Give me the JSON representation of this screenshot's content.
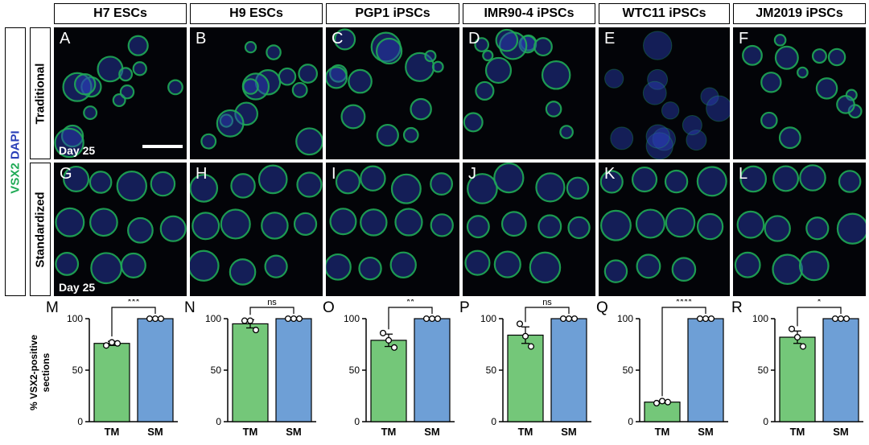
{
  "columns": [
    "H7 ESCs",
    "H9 ESCs",
    "PGP1 iPSCs",
    "IMR90-4 iPSCs",
    "WTC11 iPSCs",
    "JM2019 iPSCs"
  ],
  "rows": [
    "Traditional",
    "Standardized"
  ],
  "stain_label": {
    "marker": "VSX2",
    "nuclear": "DAPI"
  },
  "colors": {
    "marker": "#1faa55",
    "nuclear": "#2a3fb8",
    "tm_bar": "#74c779",
    "sm_bar": "#6e9fd6"
  },
  "panels_top": [
    "A",
    "B",
    "C",
    "D",
    "E",
    "F"
  ],
  "panels_bottom": [
    "G",
    "H",
    "I",
    "J",
    "K",
    "L"
  ],
  "day_label": "Day 25",
  "y_axis_label_line1": "% VSX2-positive",
  "y_axis_label_line2": "sections",
  "chart_data": [
    {
      "type": "bar",
      "panel": "M",
      "categories": [
        "TM",
        "SM"
      ],
      "values": [
        76,
        100
      ],
      "errors": [
        2,
        0
      ],
      "points": [
        [
          74,
          77,
          76
        ],
        [
          100,
          100,
          100
        ]
      ],
      "significance": "***",
      "ylim": [
        0,
        100
      ],
      "yticks": [
        0,
        50,
        100
      ]
    },
    {
      "type": "bar",
      "panel": "N",
      "categories": [
        "TM",
        "SM"
      ],
      "values": [
        95,
        100
      ],
      "errors": [
        4,
        0
      ],
      "points": [
        [
          98,
          98,
          89
        ],
        [
          100,
          100,
          100
        ]
      ],
      "significance": "ns",
      "ylim": [
        0,
        100
      ],
      "yticks": [
        0,
        50,
        100
      ]
    },
    {
      "type": "bar",
      "panel": "O",
      "categories": [
        "TM",
        "SM"
      ],
      "values": [
        79,
        100
      ],
      "errors": [
        6,
        0
      ],
      "points": [
        [
          86,
          79,
          72
        ],
        [
          100,
          100,
          100
        ]
      ],
      "significance": "**",
      "ylim": [
        0,
        100
      ],
      "yticks": [
        0,
        50,
        100
      ]
    },
    {
      "type": "bar",
      "panel": "P",
      "categories": [
        "TM",
        "SM"
      ],
      "values": [
        84,
        100
      ],
      "errors": [
        8,
        0
      ],
      "points": [
        [
          95,
          83,
          73
        ],
        [
          100,
          100,
          100
        ]
      ],
      "significance": "ns",
      "ylim": [
        0,
        100
      ],
      "yticks": [
        0,
        50,
        100
      ]
    },
    {
      "type": "bar",
      "panel": "Q",
      "categories": [
        "TM",
        "SM"
      ],
      "values": [
        19,
        100
      ],
      "errors": [
        1,
        0
      ],
      "points": [
        [
          18,
          20,
          19
        ],
        [
          100,
          100,
          100
        ]
      ],
      "significance": "****",
      "ylim": [
        0,
        100
      ],
      "yticks": [
        0,
        50,
        100
      ]
    },
    {
      "type": "bar",
      "panel": "R",
      "categories": [
        "TM",
        "SM"
      ],
      "values": [
        82,
        100
      ],
      "errors": [
        6,
        0
      ],
      "points": [
        [
          90,
          82,
          73
        ],
        [
          100,
          100,
          100
        ]
      ],
      "significance": "*",
      "ylim": [
        0,
        100
      ],
      "yticks": [
        0,
        50,
        100
      ]
    }
  ]
}
